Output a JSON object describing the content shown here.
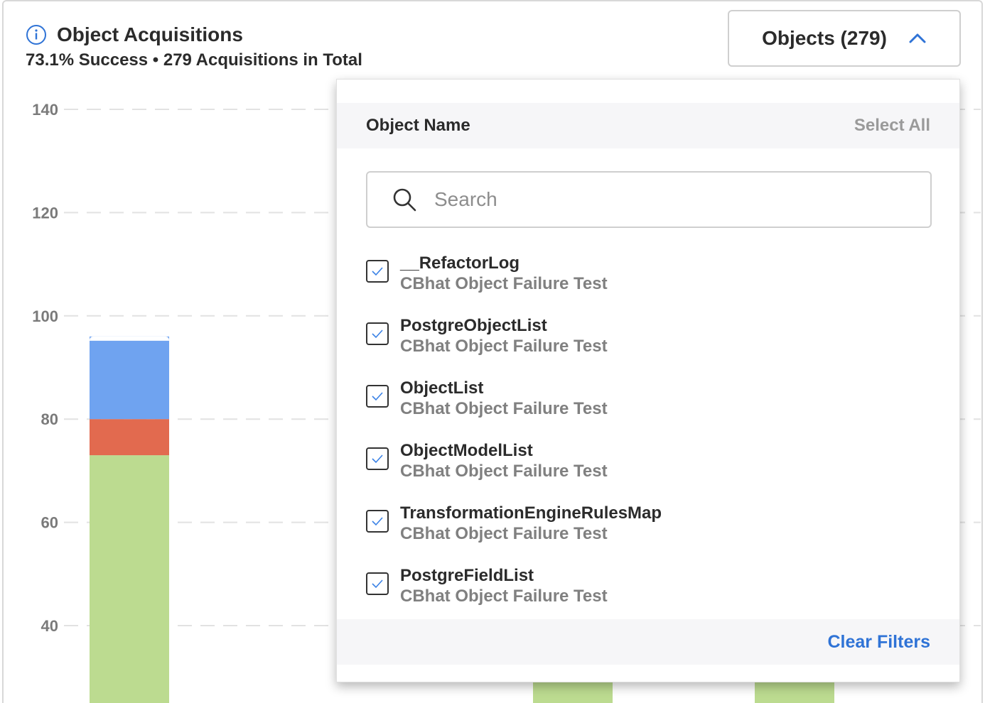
{
  "header": {
    "title": "Object Acquisitions",
    "subtitle": "73.1% Success • 279 Acquisitions in Total",
    "info_icon": "info-icon"
  },
  "filter_button": {
    "label": "Objects (279)",
    "icon": "chevron-up-icon"
  },
  "colors": {
    "accent": "#2f73d6",
    "success": "#bcdb90",
    "failure": "#e26a4f",
    "other": "#6fa3f0"
  },
  "chart_data": {
    "type": "bar",
    "stacked": true,
    "yticks": [
      40,
      60,
      80,
      100,
      120,
      140
    ],
    "ylim": [
      0,
      140
    ],
    "grid": true,
    "series": [
      {
        "color": "#bcdb90",
        "values": [
          73,
          40,
          40
        ]
      },
      {
        "color": "#e26a4f",
        "values": [
          7,
          0,
          0
        ]
      },
      {
        "color": "#6fa3f0",
        "values": [
          16,
          0,
          0
        ]
      }
    ]
  },
  "dropdown": {
    "header": "Object Name",
    "select_all": "Select All",
    "search_placeholder": "Search",
    "items": [
      {
        "name": "__RefactorLog",
        "sub": "CBhat Object Failure Test",
        "checked": true
      },
      {
        "name": "PostgreObjectList",
        "sub": "CBhat Object Failure Test",
        "checked": true
      },
      {
        "name": "ObjectList",
        "sub": "CBhat Object Failure Test",
        "checked": true
      },
      {
        "name": "ObjectModelList",
        "sub": "CBhat Object Failure Test",
        "checked": true
      },
      {
        "name": "TransformationEngineRulesMap",
        "sub": "CBhat Object Failure Test",
        "checked": true
      },
      {
        "name": "PostgreFieldList",
        "sub": "CBhat Object Failure Test",
        "checked": true
      }
    ],
    "clear_filters": "Clear Filters"
  }
}
